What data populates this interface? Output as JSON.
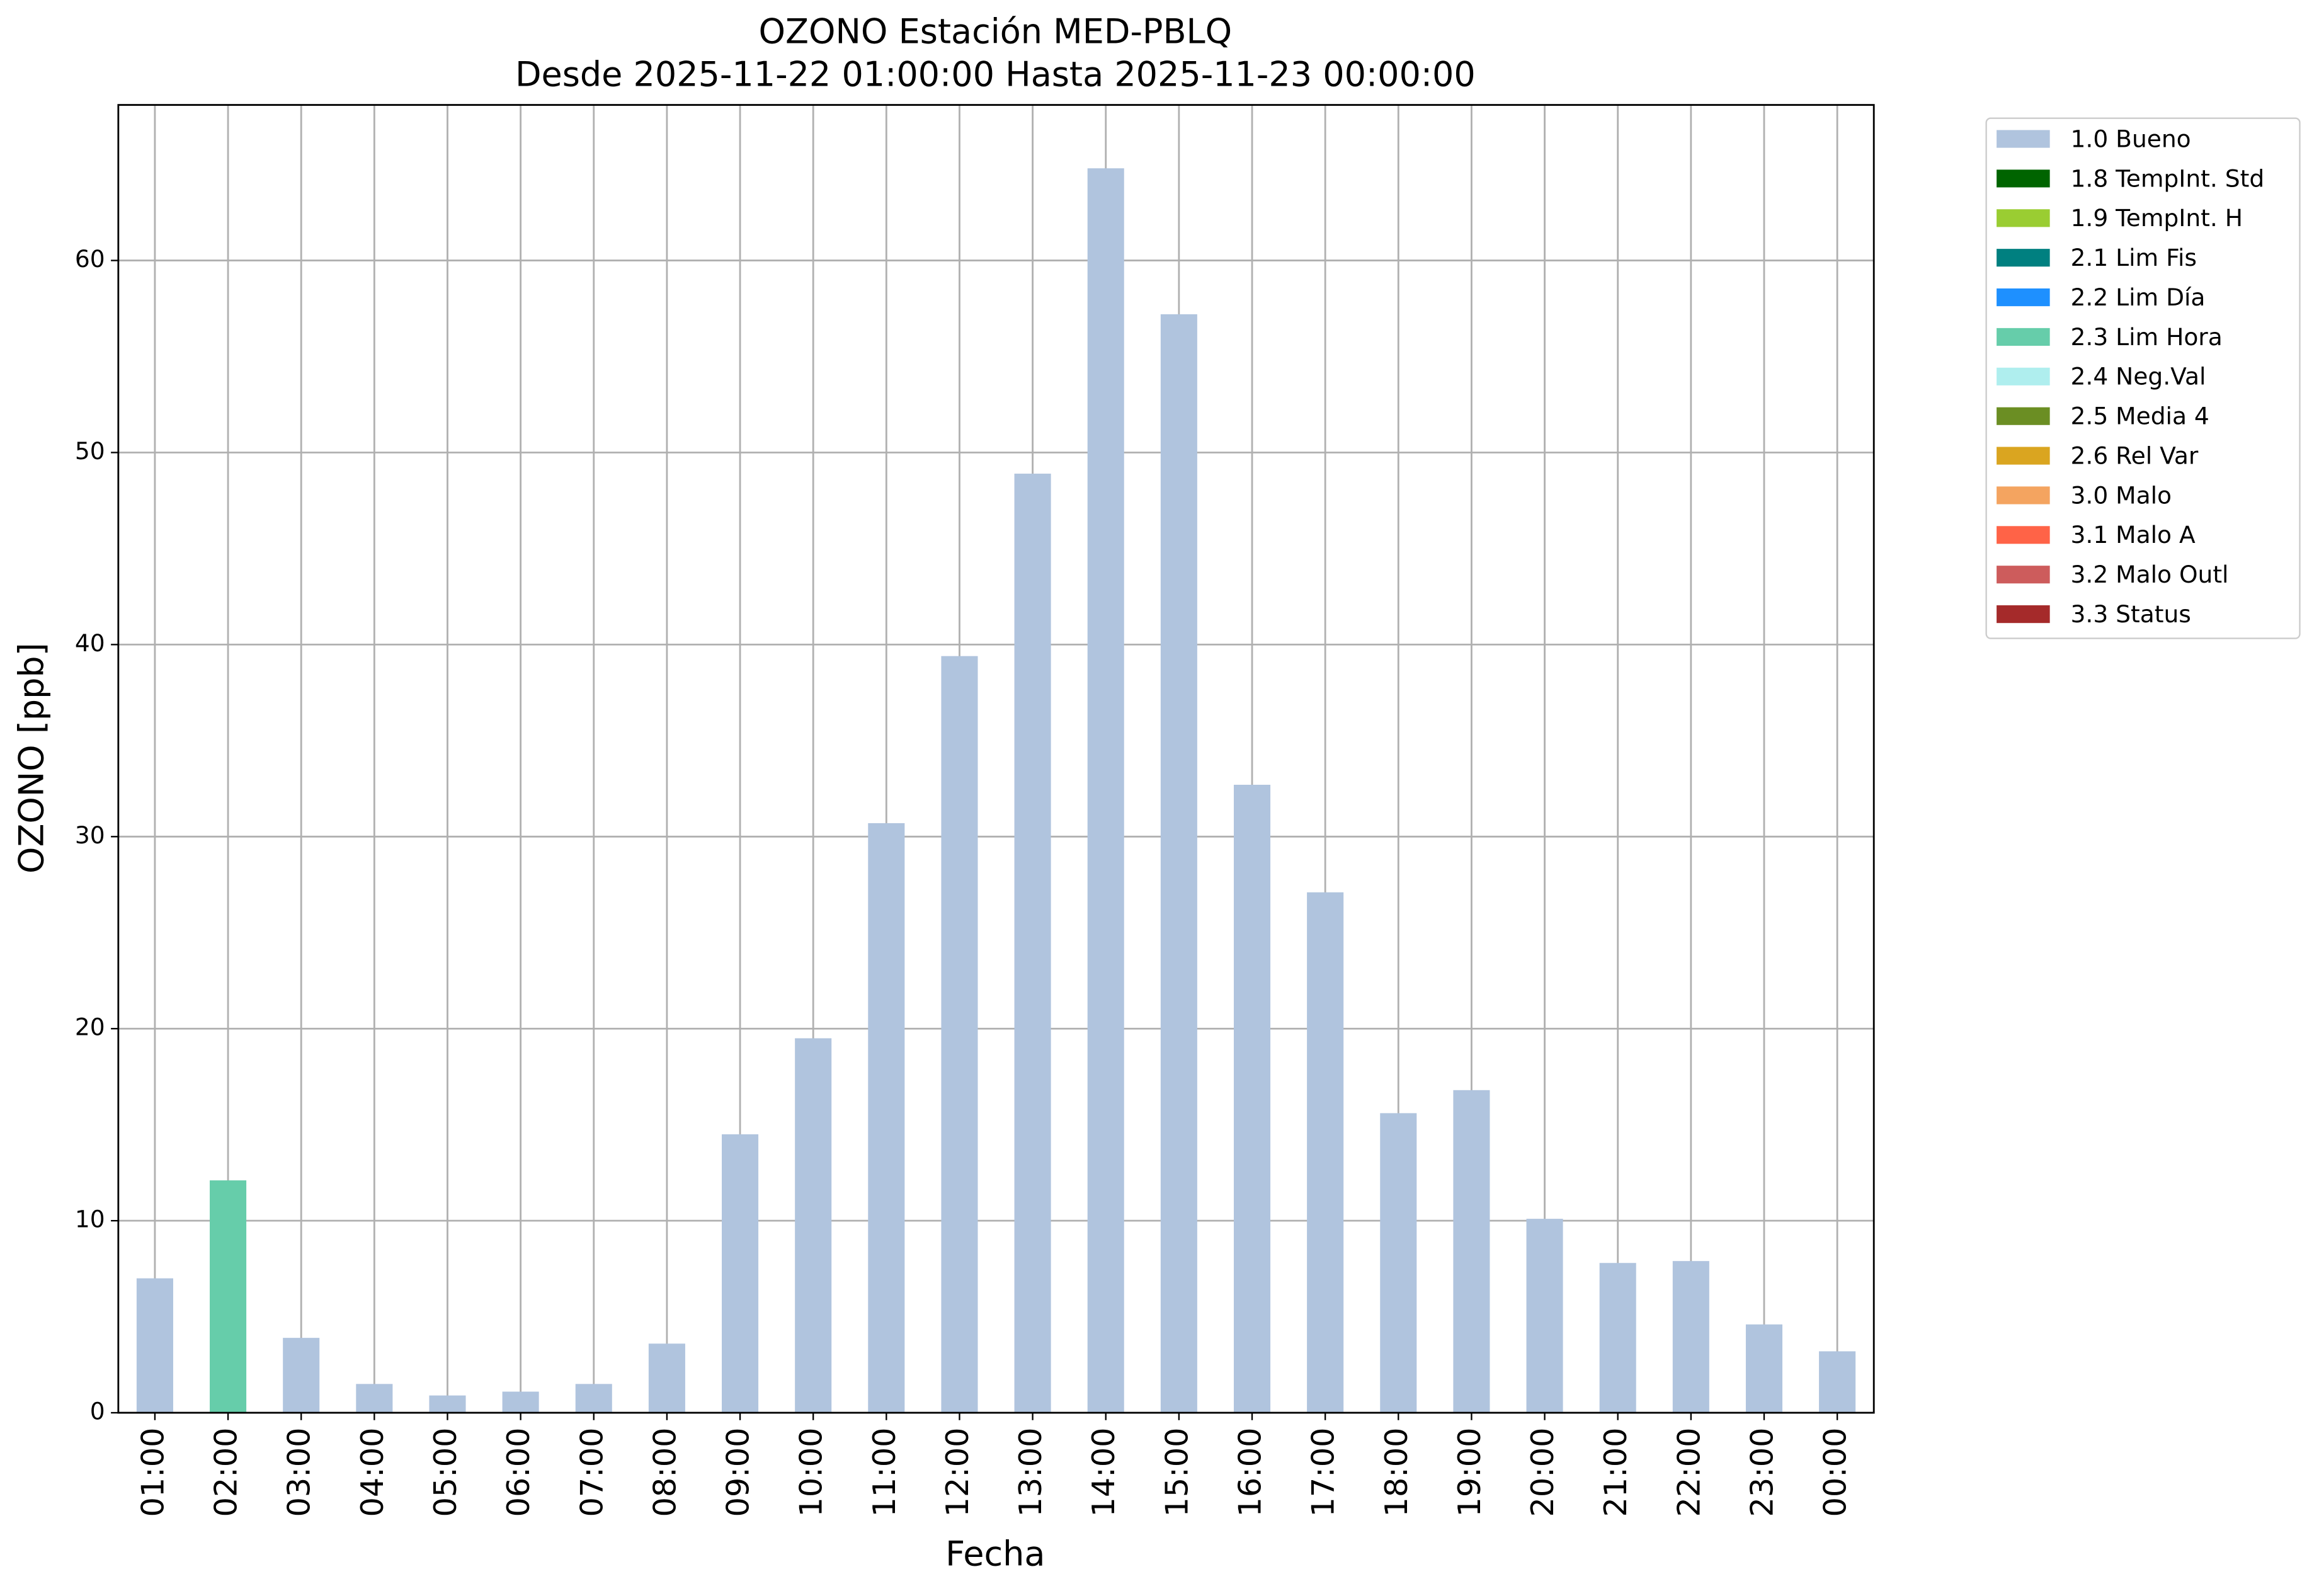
{
  "chart_data": {
    "type": "bar",
    "title": "OZONO Estación MED-PBLQ",
    "subtitle": "Desde 2025-11-22 01:00:00 Hasta 2025-11-23 00:00:00",
    "x_label": "Fecha",
    "y_label": "OZONO [ppb]",
    "categories": [
      "01:00",
      "02:00",
      "03:00",
      "04:00",
      "05:00",
      "06:00",
      "07:00",
      "08:00",
      "09:00",
      "10:00",
      "11:00",
      "12:00",
      "13:00",
      "14:00",
      "15:00",
      "16:00",
      "17:00",
      "18:00",
      "19:00",
      "20:00",
      "21:00",
      "22:00",
      "23:00",
      "00:00"
    ],
    "series": [
      {
        "name": "1.0 Bueno",
        "color": "#b0c4de",
        "values": [
          7.0,
          null,
          3.9,
          1.5,
          0.9,
          1.1,
          1.5,
          3.6,
          14.5,
          19.5,
          30.7,
          39.4,
          48.9,
          64.8,
          57.2,
          32.7,
          27.1,
          15.6,
          16.8,
          10.1,
          7.8,
          7.9,
          4.6,
          3.2
        ]
      },
      {
        "name": "1.8 TempInt. Std",
        "color": "#006400",
        "values": [
          null,
          null,
          null,
          null,
          null,
          null,
          null,
          null,
          null,
          null,
          null,
          null,
          null,
          null,
          null,
          null,
          null,
          null,
          null,
          null,
          null,
          null,
          null,
          null
        ]
      },
      {
        "name": "1.9 TempInt. H",
        "color": "#9acd32",
        "values": [
          null,
          null,
          null,
          null,
          null,
          null,
          null,
          null,
          null,
          null,
          null,
          null,
          null,
          null,
          null,
          null,
          null,
          null,
          null,
          null,
          null,
          null,
          null,
          null
        ]
      },
      {
        "name": "2.1 Lim Fis",
        "color": "#008080",
        "values": [
          null,
          null,
          null,
          null,
          null,
          null,
          null,
          null,
          null,
          null,
          null,
          null,
          null,
          null,
          null,
          null,
          null,
          null,
          null,
          null,
          null,
          null,
          null,
          null
        ]
      },
      {
        "name": "2.2 Lim Día",
        "color": "#1e90ff",
        "values": [
          null,
          null,
          null,
          null,
          null,
          null,
          null,
          null,
          null,
          null,
          null,
          null,
          null,
          null,
          null,
          null,
          null,
          null,
          null,
          null,
          null,
          null,
          null,
          null
        ]
      },
      {
        "name": "2.3 Lim Hora",
        "color": "#66cdaa",
        "values": [
          null,
          12.1,
          null,
          null,
          null,
          null,
          null,
          null,
          null,
          null,
          null,
          null,
          null,
          null,
          null,
          null,
          null,
          null,
          null,
          null,
          null,
          null,
          null,
          null
        ]
      },
      {
        "name": "2.4 Neg.Val",
        "color": "#afeeee",
        "values": [
          null,
          null,
          null,
          null,
          null,
          null,
          null,
          null,
          null,
          null,
          null,
          null,
          null,
          null,
          null,
          null,
          null,
          null,
          null,
          null,
          null,
          null,
          null,
          null
        ]
      },
      {
        "name": "2.5 Media 4",
        "color": "#6b8e23",
        "values": [
          null,
          null,
          null,
          null,
          null,
          null,
          null,
          null,
          null,
          null,
          null,
          null,
          null,
          null,
          null,
          null,
          null,
          null,
          null,
          null,
          null,
          null,
          null,
          null
        ]
      },
      {
        "name": "2.6 Rel Var",
        "color": "#daa520",
        "values": [
          null,
          null,
          null,
          null,
          null,
          null,
          null,
          null,
          null,
          null,
          null,
          null,
          null,
          null,
          null,
          null,
          null,
          null,
          null,
          null,
          null,
          null,
          null,
          null
        ]
      },
      {
        "name": "3.0 Malo",
        "color": "#f4a460",
        "values": [
          null,
          null,
          null,
          null,
          null,
          null,
          null,
          null,
          null,
          null,
          null,
          null,
          null,
          null,
          null,
          null,
          null,
          null,
          null,
          null,
          null,
          null,
          null,
          null
        ]
      },
      {
        "name": "3.1 Malo A",
        "color": "#ff6347",
        "values": [
          null,
          null,
          null,
          null,
          null,
          null,
          null,
          null,
          null,
          null,
          null,
          null,
          null,
          null,
          null,
          null,
          null,
          null,
          null,
          null,
          null,
          null,
          null,
          null
        ]
      },
      {
        "name": "3.2 Malo Outl",
        "color": "#cd5c5c",
        "values": [
          null,
          null,
          null,
          null,
          null,
          null,
          null,
          null,
          null,
          null,
          null,
          null,
          null,
          null,
          null,
          null,
          null,
          null,
          null,
          null,
          null,
          null,
          null,
          null
        ]
      },
      {
        "name": "3.3 Status",
        "color": "#a52a2a",
        "values": [
          null,
          null,
          null,
          null,
          null,
          null,
          null,
          null,
          null,
          null,
          null,
          null,
          null,
          null,
          null,
          null,
          null,
          null,
          null,
          null,
          null,
          null,
          null,
          null
        ]
      }
    ],
    "ylim": [
      0,
      68.1
    ],
    "yticks": [
      0,
      10,
      20,
      30,
      40,
      50,
      60
    ],
    "grid": true,
    "legend": "outside upper right"
  }
}
